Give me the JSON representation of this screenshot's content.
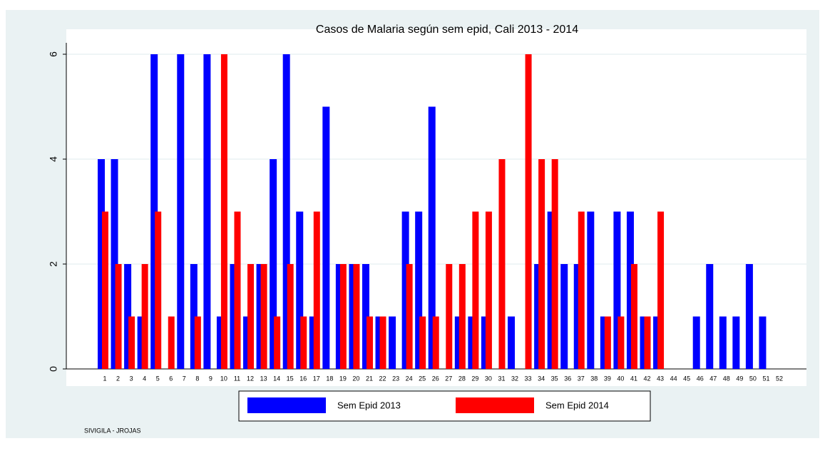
{
  "chart_data": {
    "type": "bar",
    "title": "Casos de Malaria según sem epid, Cali 2013 - 2014",
    "categories": [
      "1",
      "2",
      "3",
      "4",
      "5",
      "6",
      "7",
      "8",
      "9",
      "10",
      "11",
      "12",
      "13",
      "14",
      "15",
      "16",
      "17",
      "18",
      "19",
      "20",
      "21",
      "22",
      "23",
      "24",
      "25",
      "26",
      "27",
      "28",
      "29",
      "30",
      "31",
      "32",
      "33",
      "34",
      "35",
      "36",
      "37",
      "38",
      "39",
      "40",
      "41",
      "42",
      "43",
      "44",
      "45",
      "46",
      "47",
      "48",
      "49",
      "50",
      "51",
      "52"
    ],
    "series": [
      {
        "name": "Sem Epid 2013",
        "color": "#0000ff",
        "values": [
          4,
          4,
          2,
          1,
          6,
          0,
          6,
          2,
          6,
          1,
          2,
          1,
          2,
          4,
          6,
          3,
          1,
          5,
          2,
          2,
          2,
          1,
          1,
          3,
          3,
          5,
          0,
          1,
          1,
          1,
          0,
          1,
          0,
          2,
          3,
          2,
          2,
          3,
          1,
          3,
          3,
          1,
          1,
          0,
          0,
          1,
          2,
          1,
          1,
          2,
          1,
          0
        ]
      },
      {
        "name": "Sem Epid 2014",
        "color": "#ff0000",
        "values": [
          3,
          2,
          1,
          2,
          3,
          1,
          0,
          1,
          0,
          6,
          3,
          2,
          2,
          1,
          2,
          1,
          3,
          0,
          2,
          2,
          1,
          1,
          0,
          2,
          1,
          1,
          2,
          2,
          3,
          3,
          4,
          0,
          6,
          4,
          4,
          0,
          3,
          0,
          1,
          1,
          2,
          1,
          3,
          0,
          0,
          0,
          0,
          0,
          0,
          0,
          0,
          0
        ]
      }
    ],
    "ylim": [
      0,
      6
    ],
    "yticks": [
      0,
      2,
      4,
      6
    ],
    "grid": true,
    "note": "SIVIGILA - JROJAS"
  }
}
